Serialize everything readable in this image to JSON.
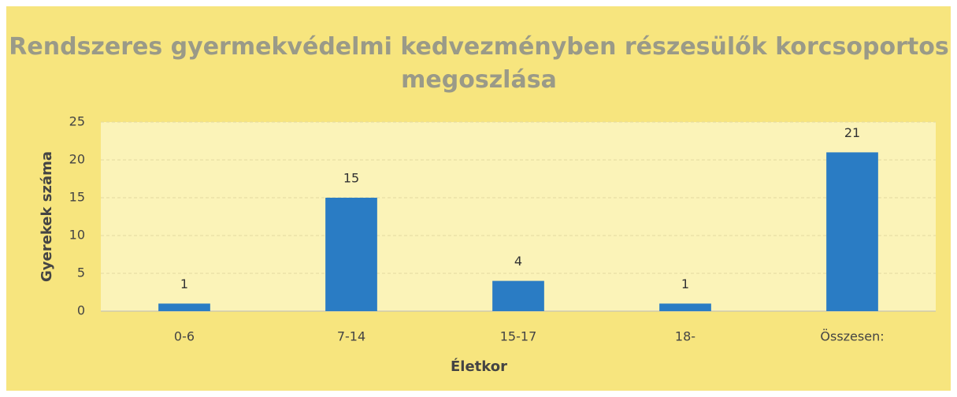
{
  "chart_data": {
    "type": "bar",
    "title": "Rendszeres gyermekvédelmi kedvezményben részesülők korcsoportos megoszlása",
    "x_label": "Életkor",
    "y_label": "Gyerekek száma",
    "categories": [
      "0-6",
      "7-14",
      "15-17",
      "18-",
      "Összesen:"
    ],
    "values": [
      1,
      15,
      4,
      1,
      21
    ],
    "color": "#2a7cc4",
    "ylim": [
      0,
      25
    ],
    "yticks": [
      0,
      5,
      10,
      15,
      20,
      25
    ],
    "grid": true
  }
}
